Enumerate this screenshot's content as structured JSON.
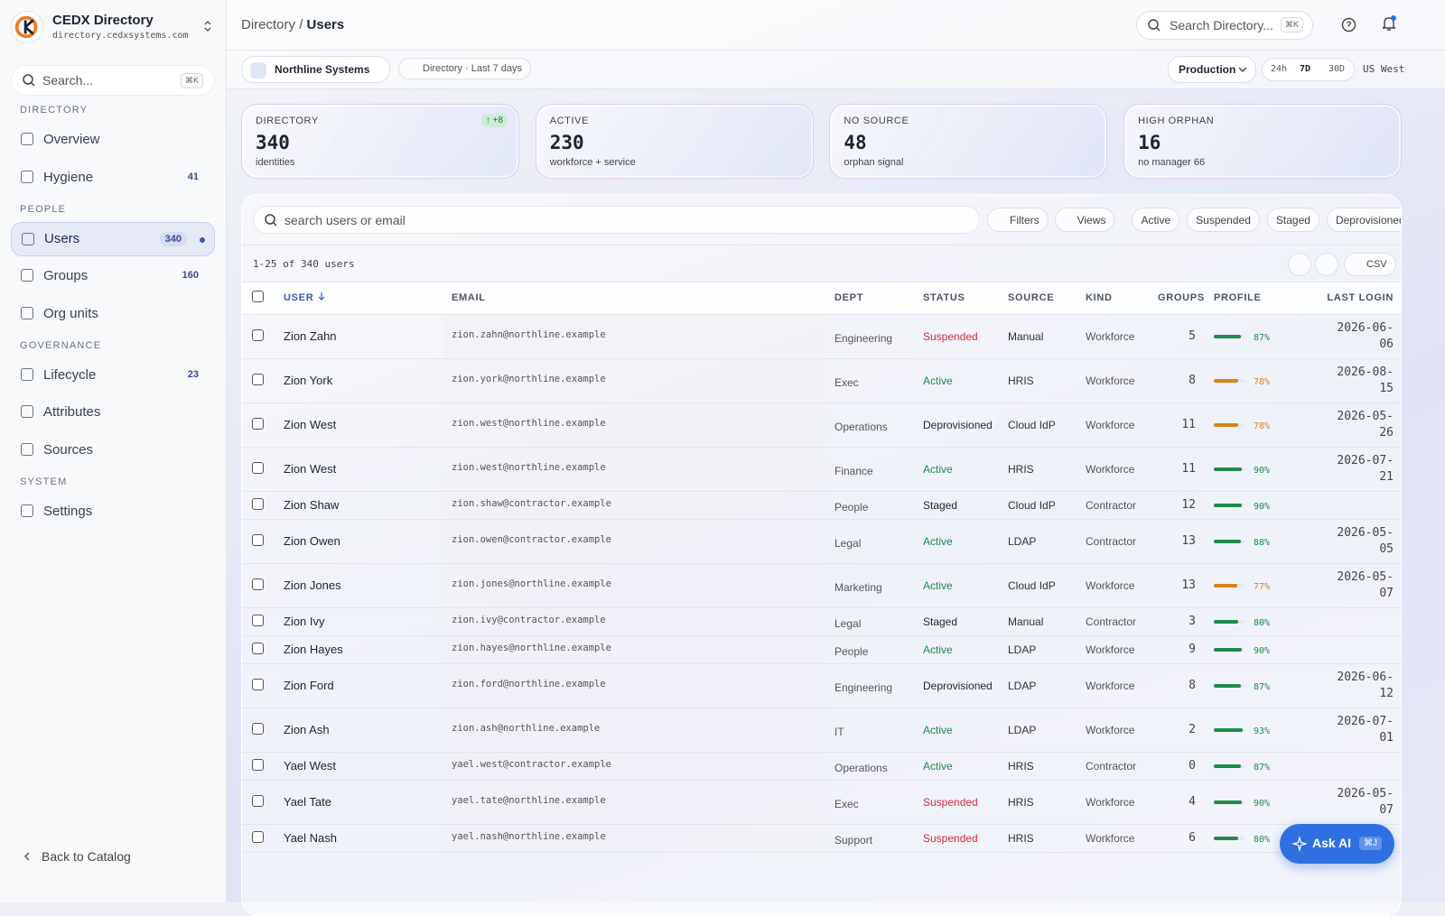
{
  "sidebar": {
    "brand": "CEDX Directory",
    "domain": "directory.cedxsystems.com",
    "search": "Search...",
    "search_shortcut": "⌘K",
    "sections": [
      {
        "title": "DIRECTORY",
        "items": [
          {
            "label": "Overview"
          },
          {
            "label": "Hygiene",
            "badge": 41
          }
        ]
      },
      {
        "title": "PEOPLE",
        "items": [
          {
            "label": "Users",
            "badge": 340,
            "selected": true
          },
          {
            "label": "Groups",
            "badge": 160
          },
          {
            "label": "Org units"
          }
        ]
      },
      {
        "title": "GOVERNANCE",
        "items": [
          {
            "label": "Lifecycle",
            "badge": 23
          },
          {
            "label": "Attributes"
          },
          {
            "label": "Sources"
          }
        ]
      },
      {
        "title": "SYSTEM",
        "items": [
          {
            "label": "Settings"
          }
        ]
      }
    ],
    "back": "Back to Catalog"
  },
  "header": {
    "breadcrumb": [
      "Directory",
      "Users"
    ],
    "separator": "/",
    "search": "Search Directory...",
    "search_shortcut": "⌘K"
  },
  "toolbar": {
    "org": "Northline Systems",
    "scope": "Directory · Last 7 days",
    "environment": "Production",
    "ranges": [
      {
        "label": "24h"
      },
      {
        "label": "7D",
        "selected": true
      },
      {
        "label": "30D"
      }
    ],
    "region": "US West"
  },
  "stats": [
    {
      "label": "DIRECTORY",
      "value": 340,
      "sub": "identities",
      "delta": "↑ +8"
    },
    {
      "label": "ACTIVE",
      "value": 230,
      "sub": "workforce + service"
    },
    {
      "label": "NO SOURCE",
      "value": 48,
      "sub": "orphan signal"
    },
    {
      "label": "HIGH ORPHAN",
      "value": 16,
      "sub": "no manager 66"
    }
  ],
  "users_table": {
    "search": "search users or email",
    "buttons": [
      "Filters",
      "Views"
    ],
    "status_chips": [
      "Active",
      "Suspended",
      "Staged",
      "Deprovisioned"
    ],
    "count": "1-25 of 340 users",
    "export": "CSV",
    "columns": [
      {
        "label": "USER",
        "sort": "descending"
      },
      {
        "label": "EMAIL"
      },
      {
        "label": "DEPT"
      },
      {
        "label": "STATUS"
      },
      {
        "label": "SOURCE"
      },
      {
        "label": "KIND"
      },
      {
        "label": "GROUPS"
      },
      {
        "label": "PROFILE"
      },
      {
        "label": "LAST LOGIN"
      }
    ],
    "rows": [
      {
        "user": "Zion Zahn",
        "email": "zion.zahn@northline.example",
        "dept": "Engineering",
        "status": "Suspended",
        "source": "Manual",
        "kind": "Workforce",
        "groups": 5,
        "profile": 87,
        "profile_label": "87%",
        "last_login": "2026-06-06"
      },
      {
        "user": "Zion York",
        "email": "zion.york@northline.example",
        "dept": "Exec",
        "status": "Active",
        "source": "HRIS",
        "kind": "Workforce",
        "groups": 8,
        "profile": 78,
        "profile_label": "78%",
        "last_login": "2026-08-15"
      },
      {
        "user": "Zion West",
        "email": "zion.west@northline.example",
        "dept": "Operations",
        "status": "Deprovisioned",
        "source": "Cloud IdP",
        "kind": "Workforce",
        "groups": 11,
        "profile": 78,
        "profile_label": "78%",
        "last_login": "2026-05-26"
      },
      {
        "user": "Zion West",
        "email": "zion.west@northline.example",
        "dept": "Finance",
        "status": "Active",
        "source": "HRIS",
        "kind": "Workforce",
        "groups": 11,
        "profile": 90,
        "profile_label": "90%",
        "last_login": "2026-07-21"
      },
      {
        "user": "Zion Shaw",
        "email": "zion.shaw@contractor.example",
        "dept": "People",
        "status": "Staged",
        "source": "Cloud IdP",
        "kind": "Contractor",
        "groups": 12,
        "profile": 90,
        "profile_label": "90%",
        "last_login": null
      },
      {
        "user": "Zion Owen",
        "email": "zion.owen@contractor.example",
        "dept": "Legal",
        "status": "Active",
        "source": "LDAP",
        "kind": "Contractor",
        "groups": 13,
        "profile": 88,
        "profile_label": "88%",
        "last_login": "2026-05-05"
      },
      {
        "user": "Zion Jones",
        "email": "zion.jones@northline.example",
        "dept": "Marketing",
        "status": "Active",
        "source": "Cloud IdP",
        "kind": "Workforce",
        "groups": 13,
        "profile": 77,
        "profile_label": "77%",
        "last_login": "2026-05-07"
      },
      {
        "user": "Zion Ivy",
        "email": "zion.ivy@contractor.example",
        "dept": "Legal",
        "status": "Staged",
        "source": "Manual",
        "kind": "Contractor",
        "groups": 3,
        "profile": 80,
        "profile_label": "80%",
        "last_login": null
      },
      {
        "user": "Zion Hayes",
        "email": "zion.hayes@northline.example",
        "dept": "People",
        "status": "Active",
        "source": "LDAP",
        "kind": "Workforce",
        "groups": 9,
        "profile": 90,
        "profile_label": "90%",
        "last_login": null
      },
      {
        "user": "Zion Ford",
        "email": "zion.ford@northline.example",
        "dept": "Engineering",
        "status": "Deprovisioned",
        "source": "LDAP",
        "kind": "Workforce",
        "groups": 8,
        "profile": 87,
        "profile_label": "87%",
        "last_login": "2026-06-12"
      },
      {
        "user": "Zion Ash",
        "email": "zion.ash@northline.example",
        "dept": "IT",
        "status": "Active",
        "source": "LDAP",
        "kind": "Workforce",
        "groups": 2,
        "profile": 93,
        "profile_label": "93%",
        "last_login": "2026-07-01"
      },
      {
        "user": "Yael West",
        "email": "yael.west@contractor.example",
        "dept": "Operations",
        "status": "Active",
        "source": "HRIS",
        "kind": "Contractor",
        "groups": 0,
        "profile": 87,
        "profile_label": "87%",
        "last_login": null
      },
      {
        "user": "Yael Tate",
        "email": "yael.tate@northline.example",
        "dept": "Exec",
        "status": "Suspended",
        "source": "HRIS",
        "kind": "Workforce",
        "groups": 4,
        "profile": 90,
        "profile_label": "90%",
        "last_login": "2026-05-07"
      },
      {
        "user": "Yael Nash",
        "email": "yael.nash@northline.example",
        "dept": "Support",
        "status": "Suspended",
        "source": "HRIS",
        "kind": "Workforce",
        "groups": 6,
        "profile": 80,
        "profile_label": "80%",
        "last_login": null
      }
    ]
  },
  "assistant": {
    "label": "Ask AI",
    "shortcut": "⌘J"
  }
}
